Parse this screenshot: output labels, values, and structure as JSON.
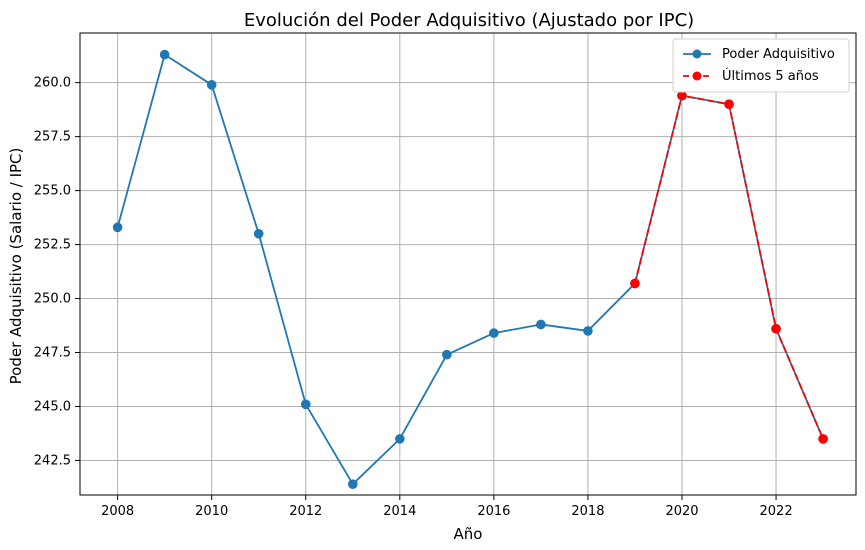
{
  "chart_data": {
    "type": "line",
    "title": "Evolución del Poder Adquisitivo (Ajustado por IPC)",
    "xlabel": "Año",
    "ylabel": "Poder Adquisitivo (Salario / IPC)",
    "xlim": [
      2007.2,
      2023.7
    ],
    "ylim": [
      240.9,
      262.3
    ],
    "grid": true,
    "legend_position": "top-right",
    "x_ticks": [
      2008,
      2010,
      2012,
      2014,
      2016,
      2018,
      2020,
      2022
    ],
    "x_tick_labels": [
      "2008",
      "2010",
      "2012",
      "2014",
      "2016",
      "2018",
      "2020",
      "2022"
    ],
    "y_ticks": [
      242.5,
      245.0,
      247.5,
      250.0,
      252.5,
      255.0,
      257.5,
      260.0
    ],
    "y_tick_labels": [
      "242.5",
      "245.0",
      "247.5",
      "250.0",
      "252.5",
      "255.0",
      "257.5",
      "260.0"
    ],
    "series": [
      {
        "name": "Poder Adquisitivo",
        "color": "#1f77b4",
        "line_style": "solid",
        "marker": "circle",
        "x": [
          2008,
          2009,
          2010,
          2011,
          2012,
          2013,
          2014,
          2015,
          2016,
          2017,
          2018,
          2019,
          2020,
          2021,
          2022,
          2023
        ],
        "y": [
          253.3,
          261.3,
          259.9,
          253.0,
          245.1,
          241.4,
          243.5,
          247.4,
          248.4,
          248.8,
          248.5,
          250.7,
          259.4,
          259.0,
          248.6,
          243.5
        ]
      },
      {
        "name": "Últimos 5 años",
        "color": "#ff0000",
        "line_style": "dashed",
        "marker": "circle",
        "x": [
          2019,
          2020,
          2021,
          2022,
          2023
        ],
        "y": [
          250.7,
          259.4,
          259.0,
          248.6,
          243.5
        ]
      }
    ]
  }
}
